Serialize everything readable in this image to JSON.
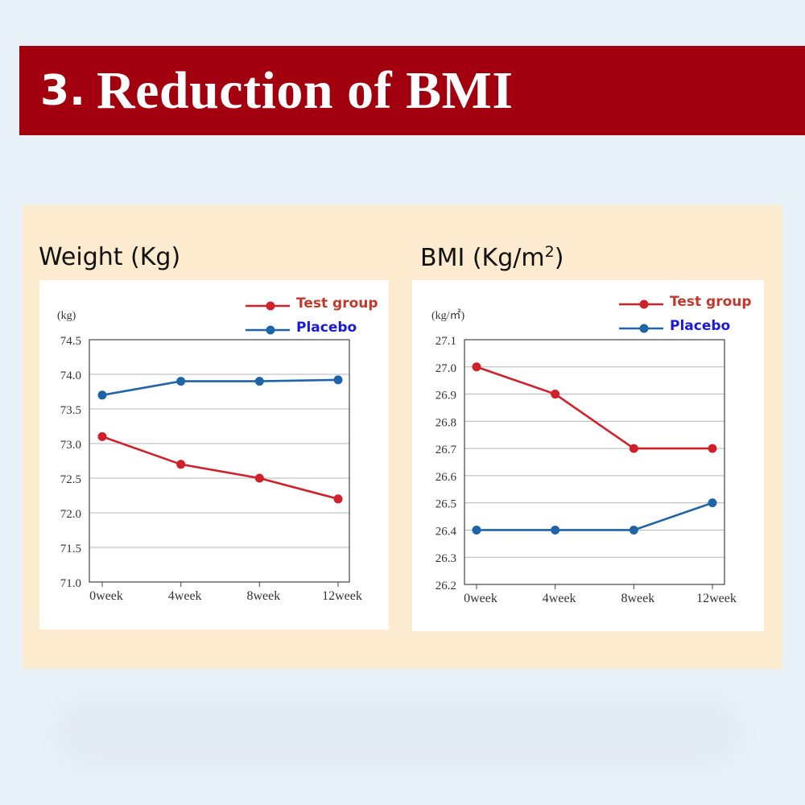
{
  "header": {
    "number": "3.",
    "title": "Reduction of BMI"
  },
  "colors": {
    "banner": "#a3000f",
    "test": "#d0202a",
    "placebo": "#1f64a8",
    "panel": "#fdebd0",
    "background": "#e8f0f8"
  },
  "charts": {
    "weight": {
      "heading": "Weight (Kg)"
    },
    "bmi": {
      "heading_main": "BMI (Kg/m",
      "heading_sup": "2",
      "heading_end": ")"
    }
  },
  "chart_data": [
    {
      "type": "line",
      "title": "Weight (Kg)",
      "unit_label": "(kg)",
      "categories": [
        "0week",
        "4week",
        "8week",
        "12week"
      ],
      "yticks": [
        "71.0",
        "71.5",
        "72.0",
        "72.5",
        "73.0",
        "73.5",
        "74.0",
        "74.5"
      ],
      "ylim": [
        71.0,
        74.5
      ],
      "grid": true,
      "legend": "top-right",
      "series": [
        {
          "name": "Test group",
          "color": "#d0202a",
          "legend_color": "#c0392b",
          "values": [
            73.1,
            72.7,
            72.5,
            72.2
          ]
        },
        {
          "name": "Placebo",
          "color": "#1f64a8",
          "legend_color": "#1a1adb",
          "values": [
            73.7,
            73.9,
            73.9,
            73.92
          ]
        }
      ]
    },
    {
      "type": "line",
      "title": "BMI (Kg/m2)",
      "unit_label": "(kg/㎡)",
      "categories": [
        "0week",
        "4week",
        "8week",
        "12week"
      ],
      "yticks": [
        "26.2",
        "26.3",
        "26.4",
        "26.5",
        "26.6",
        "26.7",
        "26.8",
        "26.9",
        "27.0",
        "27.1"
      ],
      "ylim": [
        26.2,
        27.1
      ],
      "grid": true,
      "legend": "top-right",
      "series": [
        {
          "name": "Test group",
          "color": "#d0202a",
          "legend_color": "#c0392b",
          "values": [
            27.0,
            26.9,
            26.7,
            26.7
          ]
        },
        {
          "name": "Placebo",
          "color": "#1f64a8",
          "legend_color": "#1a1adb",
          "values": [
            26.4,
            26.4,
            26.4,
            26.5
          ]
        }
      ]
    }
  ]
}
